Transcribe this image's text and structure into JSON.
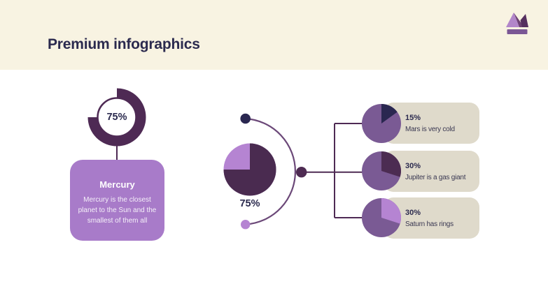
{
  "header": {
    "title": "Premium infographics",
    "logo_icon": "crown-icon"
  },
  "colors": {
    "header_bg": "#F8F3E2",
    "body_bg": "#FFFFFF",
    "title_text": "#2B2A4E",
    "dark_plum": "#4E2A54",
    "medium_purple": "#7A5A94",
    "light_purple": "#B584D2",
    "navy": "#2A2750",
    "mercury_card_bg": "#A87BC9",
    "item_card_bg": "#DFDACB",
    "arc_stroke": "#6B4878"
  },
  "mercury_block": {
    "donut_percent_label": "75%",
    "donut_percent_value": 75,
    "card_title": "Mercury",
    "card_description": "Mercury is the closest planet to the Sun and the smallest of them all"
  },
  "center_block": {
    "pie_percent_label": "75%",
    "pie_percent_value": 75
  },
  "planet_items": [
    {
      "percent_label": "15%",
      "percent_value": 15,
      "description": "Mars is very cold",
      "wedge_color": "#2A2750"
    },
    {
      "percent_label": "30%",
      "percent_value": 30,
      "description": "Jupiter is a gas giant",
      "wedge_color": "#4C2C52"
    },
    {
      "percent_label": "30%",
      "percent_value": 30,
      "description": "Saturn has rings",
      "wedge_color": "#B584D2"
    }
  ],
  "chart_data": [
    {
      "type": "pie",
      "variant": "donut",
      "title": "Mercury",
      "center_label": "75%",
      "values": [
        75,
        25
      ],
      "colors": [
        "#4E2A54",
        "#FFFFFF"
      ]
    },
    {
      "type": "pie",
      "label": "75%",
      "values": [
        75,
        25
      ],
      "colors": [
        "#4A2B50",
        "#B584D2"
      ]
    },
    {
      "type": "pie",
      "label": "15%",
      "title": "Mars is very cold",
      "values": [
        15,
        85
      ],
      "colors": [
        "#2A2750",
        "#7A5A94"
      ]
    },
    {
      "type": "pie",
      "label": "30%",
      "title": "Jupiter is a gas giant",
      "values": [
        30,
        70
      ],
      "colors": [
        "#4C2C52",
        "#7A5A94"
      ]
    },
    {
      "type": "pie",
      "label": "30%",
      "title": "Saturn has rings",
      "values": [
        30,
        70
      ],
      "colors": [
        "#B584D2",
        "#7A5A94"
      ]
    }
  ]
}
